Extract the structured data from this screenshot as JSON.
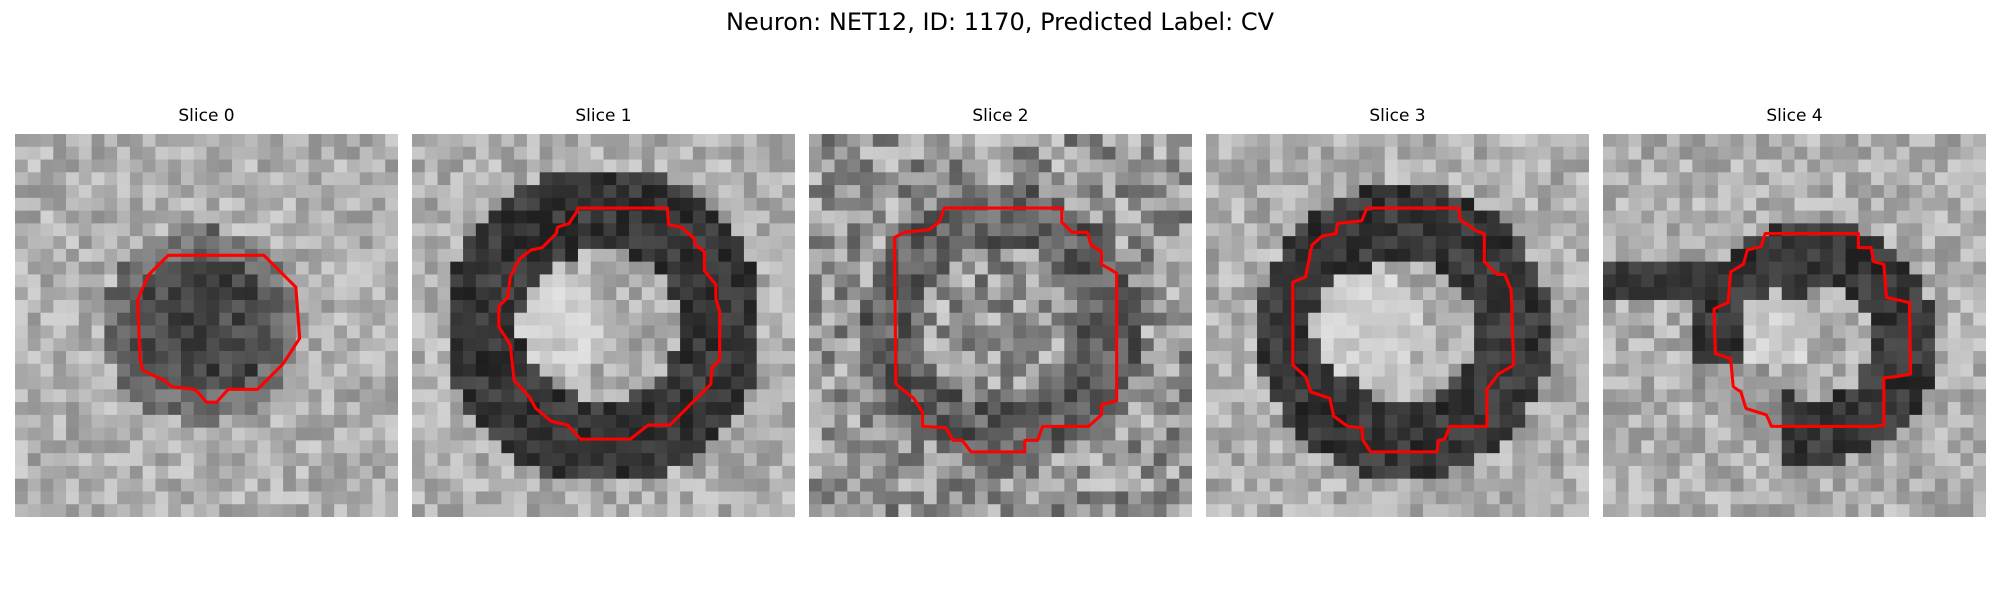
{
  "figure": {
    "title": "Neuron: NET12, ID: 1170, Predicted Label: CV"
  },
  "panels": [
    {
      "title": "Slice 0",
      "seed": 11,
      "grid": 30,
      "pattern": {
        "kind": "dark-disk",
        "cx": 14.5,
        "cy": 15.0,
        "r": 5.5,
        "ring": 2.2
      },
      "contour": [
        [
          12,
          9.5
        ],
        [
          19.5,
          9.5
        ],
        [
          22,
          12
        ],
        [
          22.3,
          16
        ],
        [
          21,
          18
        ],
        [
          20,
          19
        ],
        [
          19,
          20
        ],
        [
          16.7,
          20
        ],
        [
          15.8,
          21
        ],
        [
          15,
          21
        ],
        [
          14.3,
          20.2
        ],
        [
          14,
          20
        ],
        [
          12.3,
          19.8
        ],
        [
          11.7,
          19.3
        ],
        [
          11,
          19
        ],
        [
          10,
          18.5
        ],
        [
          9.8,
          17.6
        ],
        [
          9.6,
          13
        ],
        [
          10.5,
          11
        ]
      ]
    },
    {
      "title": "Slice 1",
      "seed": 23,
      "grid": 30,
      "pattern": {
        "kind": "dark-ring",
        "cx": 15.0,
        "cy": 15.0,
        "r": 9.2,
        "ring": 3.2,
        "bright_cx": 11.8,
        "bright_cy": 15.0,
        "bright_r": 3.6
      },
      "contour": [
        [
          13,
          5.8
        ],
        [
          20,
          5.8
        ],
        [
          20.1,
          7.1
        ],
        [
          21.1,
          7.3
        ],
        [
          22.1,
          8.2
        ],
        [
          22.2,
          8.7
        ],
        [
          22.9,
          9.2
        ],
        [
          22.9,
          10.7
        ],
        [
          23.8,
          11.8
        ],
        [
          23.8,
          12.9
        ],
        [
          24.1,
          13.9
        ],
        [
          24.1,
          17.7
        ],
        [
          23.5,
          18.3
        ],
        [
          23.4,
          19.6
        ],
        [
          22.7,
          20.3
        ],
        [
          20.2,
          22.8
        ],
        [
          18.5,
          22.8
        ],
        [
          17.1,
          23.9
        ],
        [
          13.2,
          23.9
        ],
        [
          12.2,
          22.8
        ],
        [
          10.9,
          22.5
        ],
        [
          9.7,
          21.5
        ],
        [
          9.2,
          20.6
        ],
        [
          8.0,
          19.3
        ],
        [
          7.7,
          16.5
        ],
        [
          6.8,
          15.1
        ],
        [
          6.8,
          13.5
        ],
        [
          7.5,
          12.8
        ],
        [
          7.7,
          11.2
        ],
        [
          8.4,
          9.8
        ],
        [
          9.3,
          9.1
        ],
        [
          10.2,
          8.9
        ],
        [
          11.3,
          7.8
        ],
        [
          11.4,
          7.3
        ],
        [
          12.3,
          7.0
        ],
        [
          12.9,
          6.1
        ]
      ]
    },
    {
      "title": "Slice 2",
      "seed": 37,
      "grid": 30,
      "pattern": {
        "kind": "noisy-ring",
        "cx": 15.0,
        "cy": 15.0,
        "r": 8.5,
        "ring": 2.4
      },
      "contour": [
        [
          10.6,
          5.8
        ],
        [
          19.8,
          5.8
        ],
        [
          19.8,
          6.9
        ],
        [
          20.6,
          7.7
        ],
        [
          21.8,
          7.7
        ],
        [
          22.1,
          8.7
        ],
        [
          22.9,
          9.2
        ],
        [
          22.9,
          10.2
        ],
        [
          24.1,
          10.9
        ],
        [
          24.1,
          20.9
        ],
        [
          22.9,
          21.2
        ],
        [
          22.9,
          22.0
        ],
        [
          21.9,
          22.9
        ],
        [
          18.3,
          22.9
        ],
        [
          17.9,
          24.0
        ],
        [
          16.9,
          24.0
        ],
        [
          16.9,
          24.9
        ],
        [
          12.7,
          24.9
        ],
        [
          12.0,
          24.0
        ],
        [
          11.3,
          24.0
        ],
        [
          10.7,
          23.0
        ],
        [
          8.9,
          22.9
        ],
        [
          8.9,
          21.8
        ],
        [
          8.2,
          20.7
        ],
        [
          6.8,
          19.6
        ],
        [
          6.8,
          19.2
        ],
        [
          6.7,
          8.1
        ],
        [
          7.5,
          7.7
        ],
        [
          9.4,
          7.5
        ],
        [
          10.2,
          6.9
        ]
      ]
    },
    {
      "title": "Slice 3",
      "seed": 51,
      "grid": 30,
      "pattern": {
        "kind": "dark-ring",
        "cx": 15.5,
        "cy": 15.5,
        "r": 8.6,
        "ring": 3.0,
        "bright_cx": 12.5,
        "bright_cy": 15.0,
        "bright_r": 4.2
      },
      "contour": [
        [
          12.6,
          5.8
        ],
        [
          19.8,
          5.8
        ],
        [
          19.9,
          6.7
        ],
        [
          21.2,
          7.6
        ],
        [
          21.8,
          7.8
        ],
        [
          21.8,
          10.0
        ],
        [
          22.8,
          11.0
        ],
        [
          23.4,
          11.0
        ],
        [
          23.9,
          12.2
        ],
        [
          24.1,
          18.1
        ],
        [
          22.9,
          18.8
        ],
        [
          22.0,
          20.0
        ],
        [
          22.0,
          22.9
        ],
        [
          19.1,
          22.9
        ],
        [
          18.7,
          23.9
        ],
        [
          18.2,
          24.0
        ],
        [
          18.1,
          24.9
        ],
        [
          12.9,
          24.9
        ],
        [
          12.3,
          24.0
        ],
        [
          12.2,
          23.0
        ],
        [
          11.1,
          22.9
        ],
        [
          10.0,
          22.1
        ],
        [
          9.7,
          20.7
        ],
        [
          8.2,
          20.2
        ],
        [
          7.8,
          19.0
        ],
        [
          6.8,
          18.1
        ],
        [
          6.8,
          11.6
        ],
        [
          7.8,
          11.2
        ],
        [
          8.3,
          8.7
        ],
        [
          9.1,
          8.0
        ],
        [
          10.2,
          7.8
        ],
        [
          10.3,
          7.0
        ],
        [
          12.2,
          6.8
        ]
      ]
    },
    {
      "title": "Slice 4",
      "seed": 67,
      "grid": 30,
      "pattern": {
        "kind": "half-ring",
        "cx": 16.5,
        "cy": 16.3,
        "r": 7.0,
        "ring": 2.6,
        "bright_cx": 13.6,
        "bright_cy": 15.4,
        "bright_r": 3.0
      },
      "contour": [
        [
          12.7,
          7.8
        ],
        [
          20.0,
          7.8
        ],
        [
          20.0,
          8.9
        ],
        [
          21.0,
          8.9
        ],
        [
          21.2,
          10.0
        ],
        [
          22.0,
          10.2
        ],
        [
          22.2,
          12.8
        ],
        [
          24.0,
          13.2
        ],
        [
          24.1,
          18.8
        ],
        [
          23.0,
          19.0
        ],
        [
          22.0,
          19.1
        ],
        [
          22.0,
          22.8
        ],
        [
          21.2,
          22.9
        ],
        [
          13.2,
          22.9
        ],
        [
          12.8,
          22.0
        ],
        [
          11.2,
          21.5
        ],
        [
          10.8,
          20.2
        ],
        [
          10.2,
          19.8
        ],
        [
          10.0,
          17.6
        ],
        [
          8.8,
          17.2
        ],
        [
          8.7,
          13.7
        ],
        [
          9.8,
          13.2
        ],
        [
          10.0,
          10.8
        ],
        [
          11.0,
          10.2
        ],
        [
          11.3,
          9.1
        ],
        [
          12.4,
          8.8
        ]
      ]
    }
  ],
  "colors": {
    "contour": "#ff0000",
    "background": "#ffffff"
  }
}
